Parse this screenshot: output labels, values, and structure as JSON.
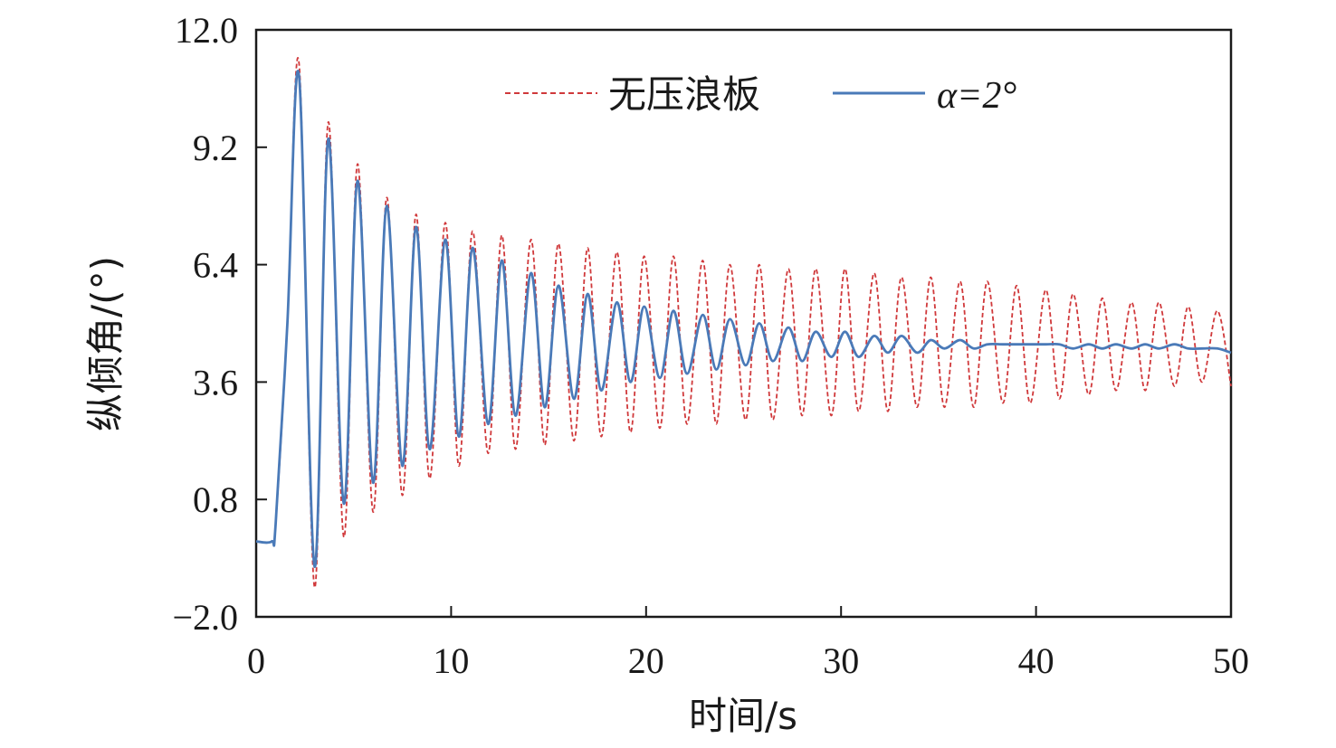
{
  "chart_data": {
    "type": "line",
    "xlabel": "时间/s",
    "ylabel": "纵倾角/(°)",
    "xlim": [
      0,
      50
    ],
    "ylim": [
      -2.0,
      12.0
    ],
    "x_ticks": [
      "0",
      "10",
      "20",
      "30",
      "40",
      "50"
    ],
    "y_ticks": [
      "12.0",
      "9.2",
      "6.4",
      "3.6",
      "0.8",
      "−2.0"
    ],
    "grid": false,
    "legend_position": "top-right",
    "series": [
      {
        "name": "无压浪板",
        "color": "#d0393b",
        "line_style": "dashed",
        "x": [
          0,
          0.8,
          1.0,
          1.6,
          2.2,
          3.0,
          3.7,
          4.5,
          5.2,
          6.0,
          6.7,
          7.5,
          8.2,
          8.9,
          9.7,
          10.4,
          11.1,
          11.9,
          12.6,
          13.3,
          14.1,
          14.8,
          15.5,
          16.3,
          17.0,
          17.7,
          18.5,
          19.2,
          19.9,
          20.7,
          21.4,
          22.1,
          22.9,
          23.6,
          24.3,
          25.1,
          25.8,
          26.5,
          27.3,
          28.0,
          28.7,
          29.5,
          30.2,
          30.9,
          31.7,
          32.4,
          33.1,
          33.9,
          34.6,
          35.3,
          36.1,
          36.8,
          37.5,
          38.3,
          39.0,
          39.7,
          40.5,
          41.2,
          41.9,
          42.7,
          43.4,
          44.1,
          44.9,
          45.6,
          46.3,
          47.1,
          47.8,
          48.5,
          49.3,
          50.0
        ],
        "y": [
          -0.2,
          -0.2,
          0.2,
          5.0,
          11.2,
          -1.3,
          9.8,
          -0.1,
          8.8,
          0.5,
          8.0,
          0.9,
          7.6,
          1.3,
          7.4,
          1.6,
          7.2,
          1.9,
          7.1,
          2.0,
          7.0,
          2.1,
          6.9,
          2.2,
          6.8,
          2.3,
          6.7,
          2.4,
          6.6,
          2.5,
          6.6,
          2.6,
          6.5,
          2.6,
          6.4,
          2.7,
          6.4,
          2.7,
          6.3,
          2.8,
          6.3,
          2.8,
          6.3,
          2.9,
          6.2,
          2.9,
          6.1,
          3.0,
          6.1,
          3.0,
          6.0,
          3.0,
          6.0,
          3.1,
          5.9,
          3.1,
          5.8,
          3.2,
          5.7,
          3.3,
          5.6,
          3.4,
          5.5,
          3.4,
          5.5,
          3.5,
          5.4,
          3.6,
          5.3,
          3.5
        ]
      },
      {
        "name": "α=2°",
        "color": "#4a7ab8",
        "line_style": "solid",
        "x": [
          0,
          0.8,
          1.0,
          1.6,
          2.2,
          3.0,
          3.7,
          4.5,
          5.2,
          6.0,
          6.7,
          7.5,
          8.2,
          8.9,
          9.7,
          10.4,
          11.1,
          11.9,
          12.6,
          13.3,
          14.1,
          14.8,
          15.5,
          16.3,
          17.0,
          17.7,
          18.5,
          19.2,
          19.9,
          20.7,
          21.4,
          22.1,
          22.9,
          23.6,
          24.3,
          25.1,
          25.8,
          26.5,
          27.3,
          28.0,
          28.7,
          29.5,
          30.2,
          30.9,
          31.7,
          32.4,
          33.1,
          33.9,
          34.6,
          35.3,
          36.1,
          36.8,
          37.5,
          38.3,
          39.0,
          39.7,
          40.5,
          41.2,
          41.9,
          42.7,
          43.4,
          44.1,
          44.9,
          45.6,
          46.3,
          47.1,
          47.8,
          48.5,
          49.3,
          50.0
        ],
        "y": [
          -0.2,
          -0.2,
          0.2,
          5.0,
          10.9,
          -0.8,
          9.4,
          0.7,
          8.4,
          1.2,
          7.8,
          1.6,
          7.3,
          2.0,
          7.0,
          2.3,
          6.8,
          2.6,
          6.5,
          2.8,
          6.2,
          3.0,
          5.9,
          3.2,
          5.7,
          3.4,
          5.5,
          3.6,
          5.4,
          3.7,
          5.3,
          3.8,
          5.2,
          3.9,
          5.1,
          4.0,
          5.0,
          4.1,
          4.9,
          4.1,
          4.8,
          4.2,
          4.8,
          4.2,
          4.7,
          4.3,
          4.7,
          4.3,
          4.6,
          4.4,
          4.6,
          4.4,
          4.5,
          4.5,
          4.5,
          4.5,
          4.5,
          4.5,
          4.4,
          4.5,
          4.4,
          4.5,
          4.4,
          4.5,
          4.4,
          4.5,
          4.4,
          4.4,
          4.4,
          4.3
        ]
      }
    ]
  }
}
